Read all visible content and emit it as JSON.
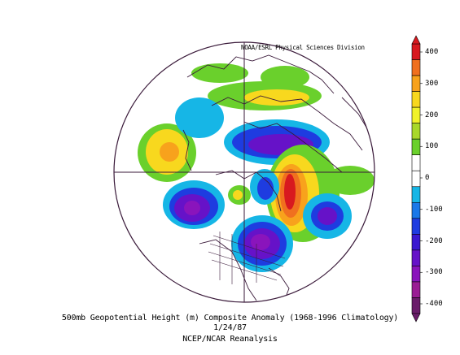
{
  "credit": "NOAA/ESRL Physical Sciences Division",
  "caption": {
    "line1": "500mb Geopotential Height (m) Composite Anomaly (1968-1996 Climatology)",
    "line2": "1/24/87",
    "line3": "NCEP/NCAR Reanalysis"
  },
  "colorbar": {
    "labels": [
      "400",
      "300",
      "200",
      "100",
      "0",
      "-100",
      "-200",
      "-300",
      "-400"
    ],
    "colors": [
      "#d8191f",
      "#f0701f",
      "#f8a21c",
      "#f8d81e",
      "#f0f22a",
      "#a8d82a",
      "#6ad02c",
      "#ffffff",
      "#ffffff",
      "#16b6e6",
      "#1a78e8",
      "#1e3ce0",
      "#3a18d0",
      "#6612c8",
      "#8a14bc",
      "#9a1c94",
      "#6a1c6a"
    ]
  },
  "colors": {
    "map_line": "#3a1a3a",
    "strong_positive": "#d8191f",
    "positive": "#f8d81e",
    "weak_positive": "#6ad02c",
    "weak_negative": "#16b6e6",
    "negative": "#1e3ce0",
    "strong_negative": "#8a14bc"
  }
}
